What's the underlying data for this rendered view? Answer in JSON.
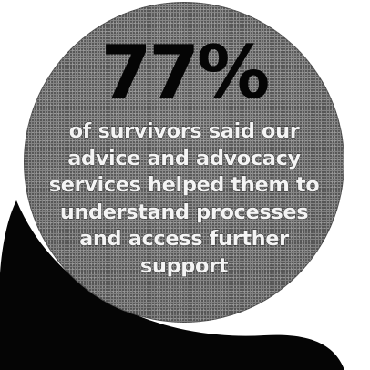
{
  "statistic": {
    "value": "77%",
    "caption_lines": [
      "of survivors said our",
      "advice and advocacy",
      "services helped them to",
      "understand processes",
      "and access further",
      "support"
    ]
  },
  "colors": {
    "circle_fill": "#868686",
    "number_text": "#050505",
    "caption_text": "#f4f4f4",
    "shadow_shape": "#050505",
    "background": "#ffffff"
  }
}
